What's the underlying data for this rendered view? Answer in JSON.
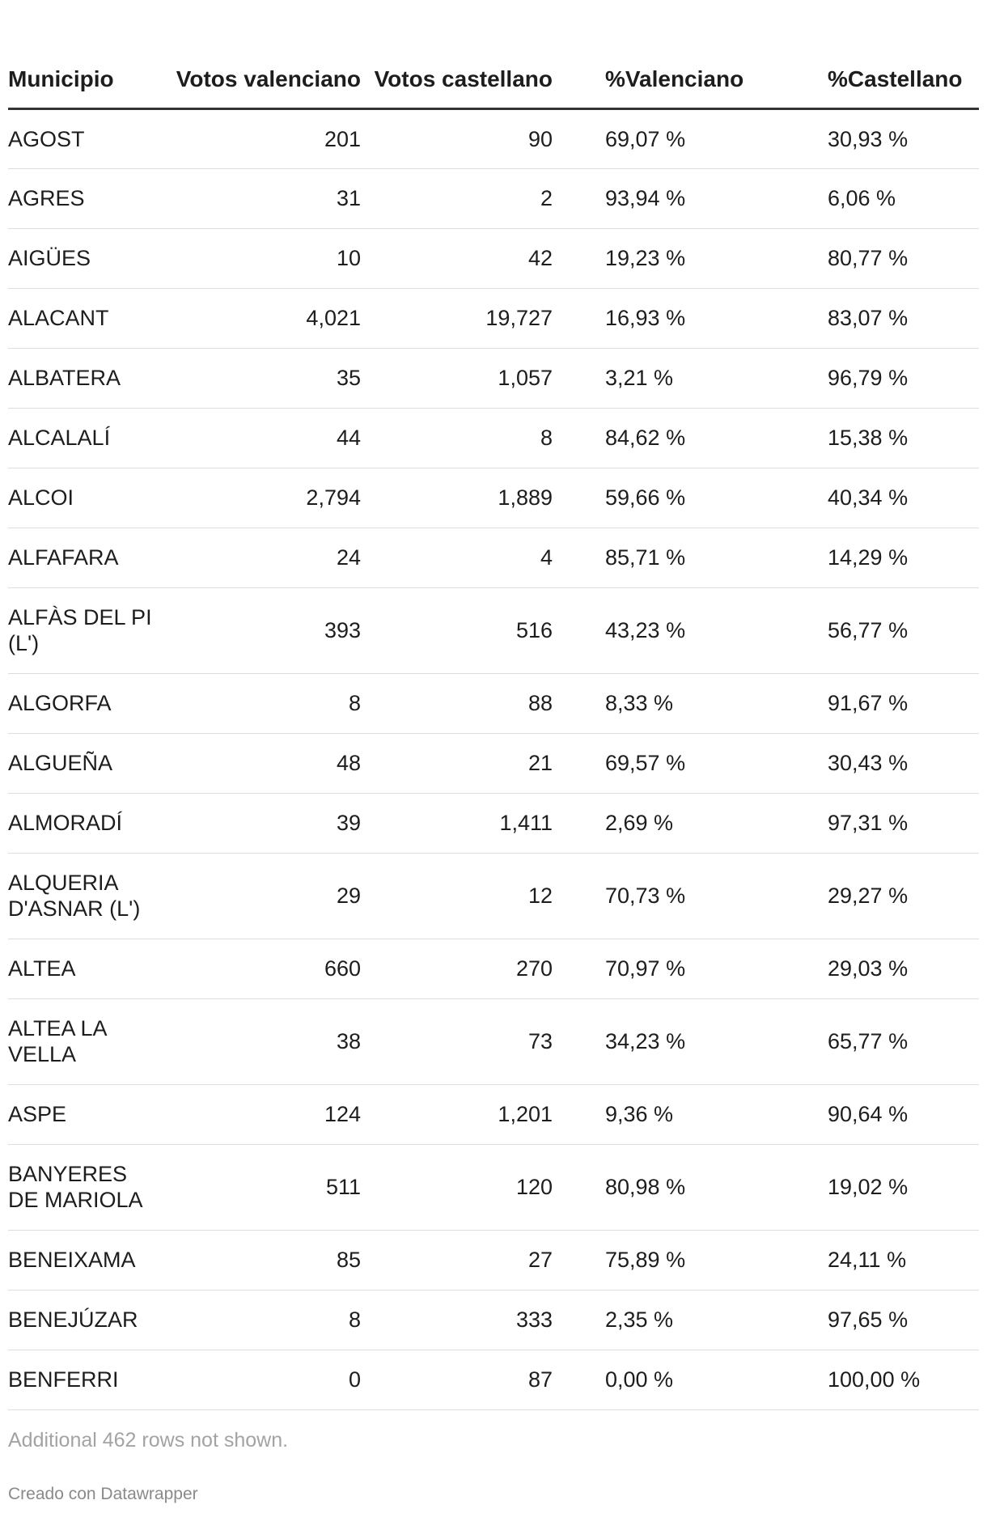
{
  "chart_data": {
    "type": "table",
    "columns": [
      "Municipio",
      "Votos valenciano",
      "Votos castellano",
      "%Valenciano",
      "%Castellano"
    ],
    "rows": [
      [
        "AGOST",
        "201",
        "90",
        "69,07 %",
        "30,93 %"
      ],
      [
        "AGRES",
        "31",
        "2",
        "93,94 %",
        "6,06 %"
      ],
      [
        "AIGÜES",
        "10",
        "42",
        "19,23 %",
        "80,77 %"
      ],
      [
        "ALACANT",
        "4,021",
        "19,727",
        "16,93 %",
        "83,07 %"
      ],
      [
        "ALBATERA",
        "35",
        "1,057",
        "3,21 %",
        "96,79 %"
      ],
      [
        "ALCALALÍ",
        "44",
        "8",
        "84,62 %",
        "15,38 %"
      ],
      [
        "ALCOI",
        "2,794",
        "1,889",
        "59,66 %",
        "40,34 %"
      ],
      [
        "ALFAFARA",
        "24",
        "4",
        "85,71 %",
        "14,29 %"
      ],
      [
        "ALFÀS DEL PI (L')",
        "393",
        "516",
        "43,23 %",
        "56,77 %"
      ],
      [
        "ALGORFA",
        "8",
        "88",
        "8,33 %",
        "91,67 %"
      ],
      [
        "ALGUEÑA",
        "48",
        "21",
        "69,57 %",
        "30,43 %"
      ],
      [
        "ALMORADÍ",
        "39",
        "1,411",
        "2,69 %",
        "97,31 %"
      ],
      [
        "ALQUERIA D'ASNAR (L')",
        "29",
        "12",
        "70,73 %",
        "29,27 %"
      ],
      [
        "ALTEA",
        "660",
        "270",
        "70,97 %",
        "29,03 %"
      ],
      [
        "ALTEA LA VELLA",
        "38",
        "73",
        "34,23 %",
        "65,77 %"
      ],
      [
        "ASPE",
        "124",
        "1,201",
        "9,36 %",
        "90,64 %"
      ],
      [
        "BANYERES DE MARIOLA",
        "511",
        "120",
        "80,98 %",
        "19,02 %"
      ],
      [
        "BENEIXAMA",
        "85",
        "27",
        "75,89 %",
        "24,11 %"
      ],
      [
        "BENEJÚZAR",
        "8",
        "333",
        "2,35 %",
        "97,65 %"
      ],
      [
        "BENFERRI",
        "0",
        "87",
        "0,00 %",
        "100,00 %"
      ]
    ],
    "tall_rows": [
      8,
      12,
      14,
      16
    ]
  },
  "footer": {
    "note": "Additional 462 rows not shown.",
    "credit": "Creado con Datawrapper"
  }
}
